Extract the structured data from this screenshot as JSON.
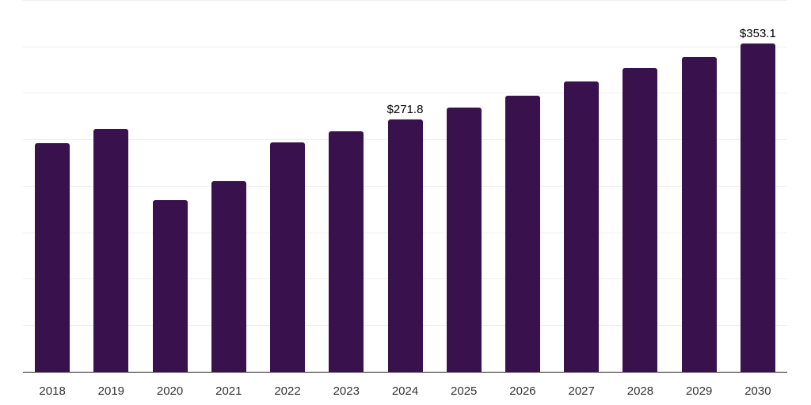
{
  "chart_data": {
    "type": "bar",
    "title": "",
    "xlabel": "",
    "ylabel": "",
    "categories": [
      "2018",
      "2019",
      "2020",
      "2021",
      "2022",
      "2023",
      "2024",
      "2025",
      "2026",
      "2027",
      "2028",
      "2029",
      "2030"
    ],
    "values": [
      246.0,
      261.3,
      184.7,
      204.7,
      246.9,
      258.7,
      271.8,
      284.3,
      297.2,
      312.6,
      327.1,
      338.7,
      353.1
    ],
    "data_labels": [
      "",
      "",
      "",
      "",
      "",
      "",
      "$271.8",
      "",
      "",
      "",
      "",
      "",
      "$353.1"
    ],
    "ylim": [
      0,
      400
    ],
    "grid_step": 50,
    "grid": true,
    "legend": "none",
    "colors": {
      "bar": "#38114D",
      "axis_line": "#222222",
      "gridline": "#EFEFF1",
      "tick_label": "#333333",
      "data_label": "#000000",
      "background": "#FFFFFF"
    }
  }
}
